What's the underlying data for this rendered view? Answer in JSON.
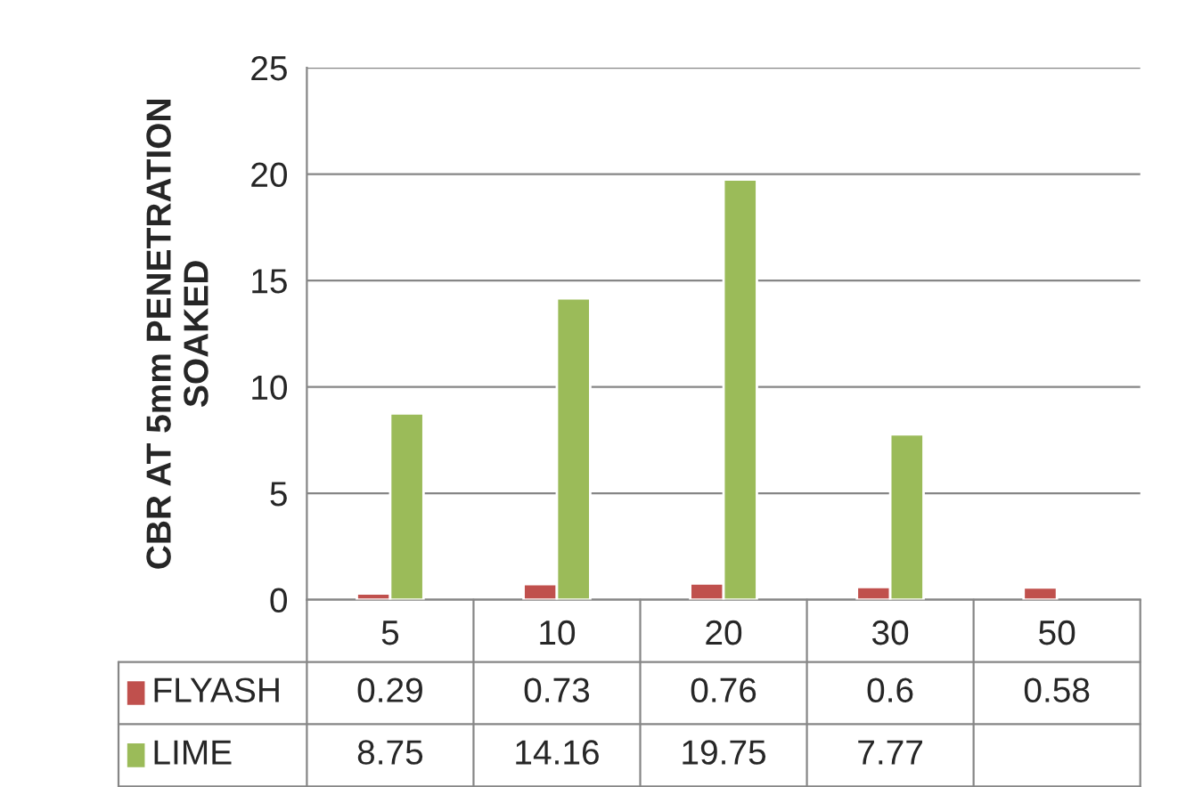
{
  "chart_data": {
    "type": "bar",
    "ylabel": "CBR AT 5mm PENETRATION\nSOAKED",
    "categories": [
      "5",
      "10",
      "20",
      "30",
      "50"
    ],
    "series": [
      {
        "name": "FLYASH",
        "color": "#c0504d",
        "values": [
          0.29,
          0.73,
          0.76,
          0.6,
          0.58
        ]
      },
      {
        "name": "LIME",
        "color": "#9bbb59",
        "values": [
          8.75,
          14.16,
          19.75,
          7.77,
          null
        ]
      }
    ],
    "ylim": [
      0,
      25
    ],
    "yticks": [
      0,
      5,
      10,
      15,
      20,
      25
    ],
    "grid": "y",
    "data_labels": true,
    "legend": "left"
  }
}
